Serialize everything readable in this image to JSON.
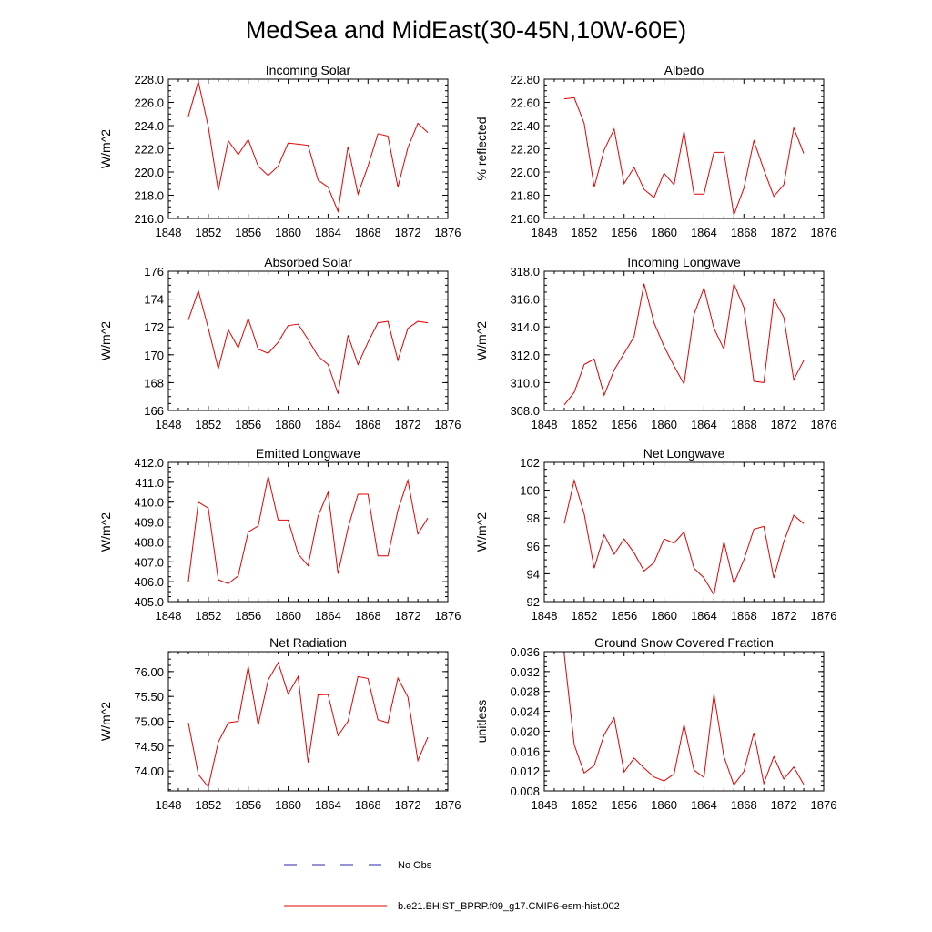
{
  "figure": {
    "title": "MedSea and MidEast(30-45N,10W-60E)"
  },
  "legend": {
    "items": [
      {
        "label": "No Obs",
        "color": "#2a2aa8",
        "style": "dashed"
      },
      {
        "label": "b.e21.BHIST_BPRP.f09_g17.CMIP6-esm-hist.002",
        "color": "#e60000",
        "style": "solid"
      }
    ]
  },
  "chart_data": [
    {
      "type": "line",
      "title": "Incoming Solar",
      "ylabel": "W/m^2",
      "xlim": [
        1848,
        1876
      ],
      "xticks": [
        "1848",
        "1852",
        "1856",
        "1860",
        "1864",
        "1868",
        "1872",
        "1876"
      ],
      "ylim": [
        216.0,
        228.0
      ],
      "yticks": [
        "216.0",
        "218.0",
        "220.0",
        "222.0",
        "224.0",
        "226.0",
        "228.0"
      ],
      "series": [
        {
          "name": "b.e21.BHIST_BPRP.f09_g17.CMIP6-esm-hist.002",
          "color": "#e60000",
          "x": [
            1850,
            1851,
            1852,
            1853,
            1854,
            1855,
            1856,
            1857,
            1858,
            1859,
            1860,
            1861,
            1862,
            1863,
            1864,
            1865,
            1866,
            1867,
            1868,
            1869,
            1870,
            1871,
            1872,
            1873,
            1874
          ],
          "y": [
            224.8,
            227.8,
            223.9,
            218.4,
            222.7,
            221.5,
            222.8,
            220.5,
            219.7,
            220.5,
            222.5,
            222.4,
            222.3,
            219.3,
            218.7,
            216.6,
            222.2,
            218.1,
            220.5,
            223.3,
            223.1,
            218.7,
            222.1,
            224.2,
            223.4
          ]
        }
      ]
    },
    {
      "type": "line",
      "title": "Albedo",
      "ylabel": "% reflected",
      "xlim": [
        1848,
        1876
      ],
      "xticks": [
        "1848",
        "1852",
        "1856",
        "1860",
        "1864",
        "1868",
        "1872",
        "1876"
      ],
      "ylim": [
        21.6,
        22.8
      ],
      "yticks": [
        "21.60",
        "21.80",
        "22.00",
        "22.20",
        "22.40",
        "22.60",
        "22.80"
      ],
      "series": [
        {
          "name": "b.e21.BHIST_BPRP.f09_g17.CMIP6-esm-hist.002",
          "color": "#e60000",
          "x": [
            1850,
            1851,
            1852,
            1853,
            1854,
            1855,
            1856,
            1857,
            1858,
            1859,
            1860,
            1861,
            1862,
            1863,
            1864,
            1865,
            1866,
            1867,
            1868,
            1869,
            1870,
            1871,
            1872,
            1873,
            1874
          ],
          "y": [
            22.63,
            22.64,
            22.42,
            21.87,
            22.19,
            22.37,
            21.9,
            22.04,
            21.85,
            21.78,
            21.99,
            21.89,
            22.35,
            21.81,
            21.81,
            22.17,
            22.17,
            21.63,
            21.86,
            22.27,
            22.02,
            21.79,
            21.89,
            22.38,
            22.16
          ]
        }
      ]
    },
    {
      "type": "line",
      "title": "Absorbed Solar",
      "ylabel": "W/m^2",
      "xlim": [
        1848,
        1876
      ],
      "xticks": [
        "1848",
        "1852",
        "1856",
        "1860",
        "1864",
        "1868",
        "1872",
        "1876"
      ],
      "ylim": [
        166,
        176
      ],
      "yticks": [
        "166",
        "168",
        "170",
        "172",
        "174",
        "176"
      ],
      "series": [
        {
          "name": "b.e21.BHIST_BPRP.f09_g17.CMIP6-esm-hist.002",
          "color": "#e60000",
          "x": [
            1850,
            1851,
            1852,
            1853,
            1854,
            1855,
            1856,
            1857,
            1858,
            1859,
            1860,
            1861,
            1862,
            1863,
            1864,
            1865,
            1866,
            1867,
            1868,
            1869,
            1870,
            1871,
            1872,
            1873,
            1874
          ],
          "y": [
            172.5,
            174.6,
            171.9,
            169.0,
            171.8,
            170.5,
            172.6,
            170.4,
            170.1,
            170.9,
            172.1,
            172.2,
            171.1,
            169.9,
            169.3,
            167.2,
            171.4,
            169.3,
            170.9,
            172.3,
            172.4,
            169.6,
            171.9,
            172.4,
            172.3
          ]
        }
      ]
    },
    {
      "type": "line",
      "title": "Incoming Longwave",
      "ylabel": "W/m^2",
      "xlim": [
        1848,
        1876
      ],
      "xticks": [
        "1848",
        "1852",
        "1856",
        "1860",
        "1864",
        "1868",
        "1872",
        "1876"
      ],
      "ylim": [
        308.0,
        318.0
      ],
      "yticks": [
        "308.0",
        "310.0",
        "312.0",
        "314.0",
        "316.0",
        "318.0"
      ],
      "series": [
        {
          "name": "b.e21.BHIST_BPRP.f09_g17.CMIP6-esm-hist.002",
          "color": "#e60000",
          "x": [
            1850,
            1851,
            1852,
            1853,
            1854,
            1855,
            1856,
            1857,
            1858,
            1859,
            1860,
            1861,
            1862,
            1863,
            1864,
            1865,
            1866,
            1867,
            1868,
            1869,
            1870,
            1871,
            1872,
            1873,
            1874
          ],
          "y": [
            308.4,
            309.3,
            311.3,
            311.7,
            309.1,
            310.9,
            312.1,
            313.3,
            317.1,
            314.3,
            312.6,
            311.2,
            309.9,
            314.9,
            316.8,
            313.9,
            312.4,
            317.1,
            315.4,
            310.1,
            310.0,
            316.0,
            314.7,
            310.2,
            311.6
          ]
        }
      ]
    },
    {
      "type": "line",
      "title": "Emitted Longwave",
      "ylabel": "W/m^2",
      "xlim": [
        1848,
        1876
      ],
      "xticks": [
        "1848",
        "1852",
        "1856",
        "1860",
        "1864",
        "1868",
        "1872",
        "1876"
      ],
      "ylim": [
        405.0,
        412.0
      ],
      "yticks": [
        "405.0",
        "406.0",
        "407.0",
        "408.0",
        "409.0",
        "410.0",
        "411.0",
        "412.0"
      ],
      "series": [
        {
          "name": "b.e21.BHIST_BPRP.f09_g17.CMIP6-esm-hist.002",
          "color": "#e60000",
          "x": [
            1850,
            1851,
            1852,
            1853,
            1854,
            1855,
            1856,
            1857,
            1858,
            1859,
            1860,
            1861,
            1862,
            1863,
            1864,
            1865,
            1866,
            1867,
            1868,
            1869,
            1870,
            1871,
            1872,
            1873,
            1874
          ],
          "y": [
            406.0,
            410.0,
            409.7,
            406.1,
            405.9,
            406.3,
            408.5,
            408.8,
            411.3,
            409.1,
            409.1,
            407.4,
            406.8,
            409.3,
            410.5,
            406.4,
            408.7,
            410.4,
            410.4,
            407.3,
            407.3,
            409.6,
            411.1,
            408.4,
            409.2
          ]
        }
      ]
    },
    {
      "type": "line",
      "title": "Net Longwave",
      "ylabel": "W/m^2",
      "xlim": [
        1848,
        1876
      ],
      "xticks": [
        "1848",
        "1852",
        "1856",
        "1860",
        "1864",
        "1868",
        "1872",
        "1876"
      ],
      "ylim": [
        92,
        102
      ],
      "yticks": [
        "92",
        "94",
        "96",
        "98",
        "100",
        "102"
      ],
      "series": [
        {
          "name": "b.e21.BHIST_BPRP.f09_g17.CMIP6-esm-hist.002",
          "color": "#e60000",
          "x": [
            1850,
            1851,
            1852,
            1853,
            1854,
            1855,
            1856,
            1857,
            1858,
            1859,
            1860,
            1861,
            1862,
            1863,
            1864,
            1865,
            1866,
            1867,
            1868,
            1869,
            1870,
            1871,
            1872,
            1873,
            1874
          ],
          "y": [
            97.6,
            100.7,
            98.3,
            94.4,
            96.8,
            95.4,
            96.5,
            95.5,
            94.2,
            94.8,
            96.5,
            96.2,
            97.0,
            94.4,
            93.7,
            92.5,
            96.3,
            93.3,
            95.0,
            97.2,
            97.4,
            93.7,
            96.3,
            98.2,
            97.6
          ]
        }
      ]
    },
    {
      "type": "line",
      "title": "Net Radiation",
      "ylabel": "W/m^2",
      "xlim": [
        1848,
        1876
      ],
      "xticks": [
        "1848",
        "1852",
        "1856",
        "1860",
        "1864",
        "1868",
        "1872",
        "1876"
      ],
      "ylim": [
        73.6,
        76.4
      ],
      "yticks": [
        "74.00",
        "74.50",
        "75.00",
        "75.50",
        "76.00"
      ],
      "ytick_values": [
        74.0,
        74.5,
        75.0,
        75.5,
        76.0
      ],
      "series": [
        {
          "name": "b.e21.BHIST_BPRP.f09_g17.CMIP6-esm-hist.002",
          "color": "#e60000",
          "x": [
            1850,
            1851,
            1852,
            1853,
            1854,
            1855,
            1856,
            1857,
            1858,
            1859,
            1860,
            1861,
            1862,
            1863,
            1864,
            1865,
            1866,
            1867,
            1868,
            1869,
            1870,
            1871,
            1872,
            1873,
            1874
          ],
          "y": [
            74.97,
            73.93,
            73.68,
            74.58,
            74.97,
            75.0,
            76.1,
            74.92,
            75.83,
            76.18,
            75.55,
            75.9,
            74.17,
            75.53,
            75.54,
            74.71,
            75.0,
            75.9,
            75.86,
            75.03,
            74.97,
            75.87,
            75.49,
            74.21,
            74.68
          ]
        }
      ]
    },
    {
      "type": "line",
      "title": "Ground Snow Covered Fraction",
      "ylabel": "unitless",
      "xlim": [
        1848,
        1876
      ],
      "xticks": [
        "1848",
        "1852",
        "1856",
        "1860",
        "1864",
        "1868",
        "1872",
        "1876"
      ],
      "ylim": [
        0.008,
        0.036
      ],
      "yticks": [
        "0.008",
        "0.012",
        "0.016",
        "0.020",
        "0.024",
        "0.028",
        "0.032",
        "0.036"
      ],
      "series": [
        {
          "name": "b.e21.BHIST_BPRP.f09_g17.CMIP6-esm-hist.002",
          "color": "#e60000",
          "x": [
            1850,
            1851,
            1852,
            1853,
            1854,
            1855,
            1856,
            1857,
            1858,
            1859,
            1860,
            1861,
            1862,
            1863,
            1864,
            1865,
            1866,
            1867,
            1868,
            1869,
            1870,
            1871,
            1872,
            1873,
            1874
          ],
          "y": [
            0.0355,
            0.0173,
            0.0116,
            0.0131,
            0.0193,
            0.0227,
            0.0118,
            0.0146,
            0.0126,
            0.0108,
            0.01,
            0.0114,
            0.0213,
            0.0122,
            0.0107,
            0.0274,
            0.0149,
            0.0092,
            0.0119,
            0.0197,
            0.0095,
            0.0149,
            0.0104,
            0.0128,
            0.0093
          ]
        }
      ]
    }
  ]
}
